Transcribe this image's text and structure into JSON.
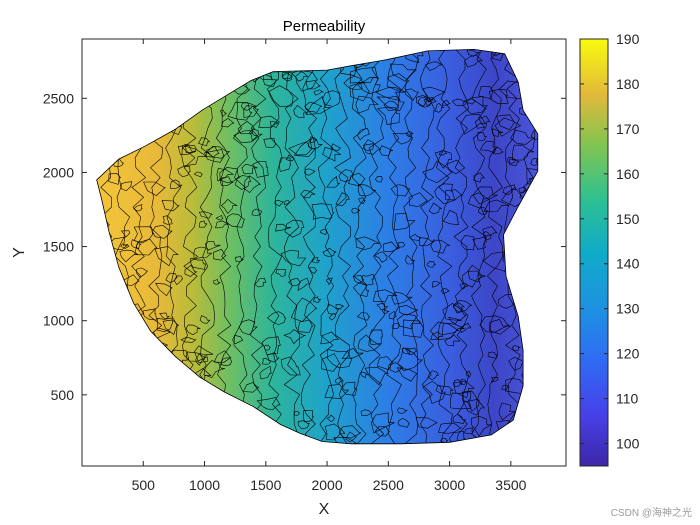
{
  "chart_data": {
    "type": "contour",
    "title": "Permeability",
    "xlabel": "X",
    "ylabel": "Y",
    "xlim": [
      0,
      3950
    ],
    "ylim": [
      20,
      2900
    ],
    "xticks": [
      500,
      1000,
      1500,
      2000,
      2500,
      3000,
      3500
    ],
    "yticks": [
      500,
      1000,
      1500,
      2000,
      2500
    ],
    "colorbar": {
      "limits": [
        95,
        190
      ],
      "ticks": [
        100,
        110,
        120,
        130,
        140,
        150,
        160,
        170,
        180,
        190
      ],
      "colormap": "parula"
    },
    "trend": "Permeability decreases from west (about 175 near X=300) to east (about 100 near X=3300), filled contours with black contour lines"
  },
  "watermark": "CSDN @海神之光",
  "colors": {
    "high": "#f9d22c",
    "mid": "#21b3a4",
    "low": "#3f3ec2",
    "axis": "#262626",
    "background": "#ffffff"
  }
}
